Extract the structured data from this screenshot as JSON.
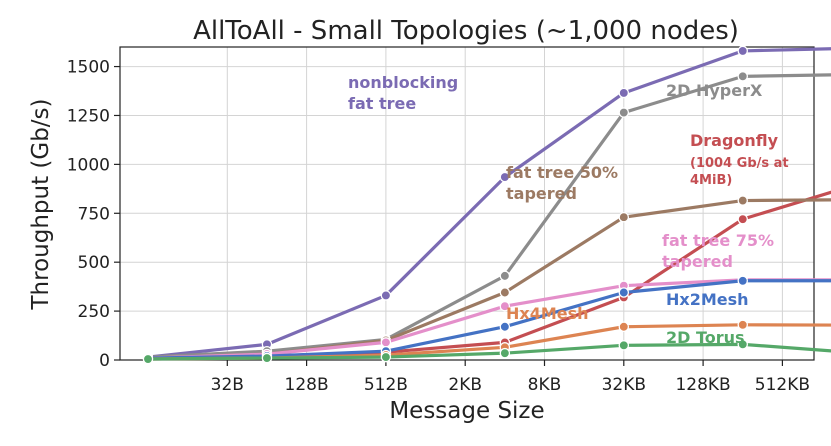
{
  "chart_data": {
    "type": "line",
    "title": "AllToAll - Small Topologies (~1,000 nodes)",
    "xlabel": "Message Size",
    "ylabel": "Throughput (Gb/s)",
    "x_tick_labels": [
      "32B",
      "128B",
      "512B",
      "2KB",
      "8KB",
      "32KB",
      "128KB",
      "512KB"
    ],
    "x_log2_values": [
      3,
      5,
      7,
      9,
      11,
      13,
      15,
      17,
      19,
      21,
      23
    ],
    "y_ticks": [
      0,
      250,
      500,
      750,
      1000,
      1250,
      1500
    ],
    "y_tick_labels": [
      "0",
      "250",
      "500",
      "750",
      "1000",
      "1250",
      "1500"
    ],
    "ylim": [
      0,
      1600
    ],
    "grid": true,
    "series": [
      {
        "name": "nonblocking fat tree",
        "color": "#7b6bb3",
        "values": [
          15,
          80,
          330,
          935,
          1365,
          1580,
          1595
        ]
      },
      {
        "name": "2D HyperX",
        "color": "#8c8c8c",
        "values": [
          15,
          45,
          105,
          430,
          1265,
          1450,
          1460
        ]
      },
      {
        "name": "Dragonfly",
        "color": "#c44e52",
        "values": [
          10,
          20,
          40,
          90,
          320,
          720,
          905
        ]
      },
      {
        "name": "fat tree 50% tapered",
        "color": "#9c7a63",
        "values": [
          10,
          30,
          100,
          345,
          730,
          815,
          820
        ]
      },
      {
        "name": "fat tree 75% tapered",
        "color": "#e48fca",
        "values": [
          10,
          30,
          90,
          275,
          380,
          410,
          410
        ]
      },
      {
        "name": "Hx2Mesh",
        "color": "#4472c4",
        "values": [
          10,
          20,
          45,
          170,
          345,
          405,
          405
        ]
      },
      {
        "name": "Hx4Mesh",
        "color": "#dd8452",
        "values": [
          5,
          10,
          25,
          65,
          170,
          180,
          178
        ]
      },
      {
        "name": "2D Torus",
        "color": "#55a868",
        "values": [
          5,
          10,
          15,
          35,
          75,
          80,
          35
        ]
      }
    ],
    "annotations": [
      {
        "lines": [
          "nonblocking",
          "fat tree"
        ],
        "color": "#7b6bb3"
      },
      {
        "lines": [
          "2D HyperX"
        ],
        "color": "#8c8c8c"
      },
      {
        "lines": [
          "Dragonfly"
        ],
        "color": "#c44e52"
      },
      {
        "lines": [
          "(1004 Gb/s at",
          "4MiB)"
        ],
        "color": "#c44e52"
      },
      {
        "lines": [
          "fat tree 50%",
          "tapered"
        ],
        "color": "#9c7a63"
      },
      {
        "lines": [
          "fat tree 75%",
          "tapered"
        ],
        "color": "#e48fca"
      },
      {
        "lines": [
          "Hx2Mesh"
        ],
        "color": "#4472c4"
      },
      {
        "lines": [
          "Hx4Mesh"
        ],
        "color": "#dd8452"
      },
      {
        "lines": [
          "2D Torus"
        ],
        "color": "#55a868"
      }
    ]
  }
}
